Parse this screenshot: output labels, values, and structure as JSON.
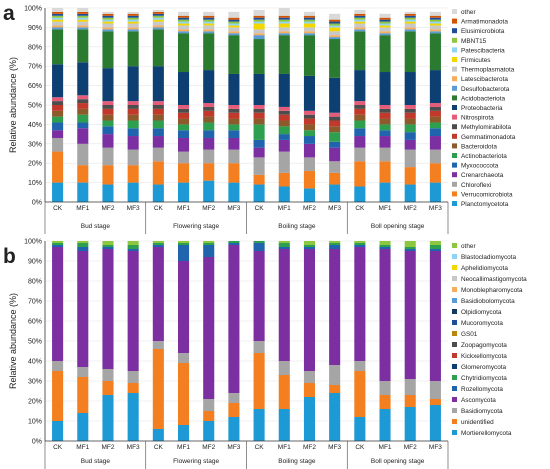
{
  "figure": {
    "panel_labels": [
      "a",
      "b"
    ],
    "stage_labels": [
      "Bud stage",
      "Flowering stage",
      "Boiling stage",
      "Boll opening stage"
    ],
    "treatment_labels": [
      "CK",
      "MF1",
      "MF2",
      "MF3"
    ]
  },
  "chart_data": [
    {
      "type": "bar",
      "stacked": true,
      "panel": "a",
      "ylabel": "Relative abundance (%)",
      "ylim": [
        0,
        100
      ],
      "yticks": [
        "0%",
        "10%",
        "20%",
        "30%",
        "40%",
        "50%",
        "60%",
        "70%",
        "80%",
        "90%",
        "100%"
      ],
      "grid": true,
      "legend_position": "right",
      "categories": [
        "CK",
        "MF1",
        "MF2",
        "MF3",
        "CK",
        "MF1",
        "MF2",
        "MF3",
        "CK",
        "MF1",
        "MF2",
        "MF3",
        "CK",
        "MF1",
        "MF2",
        "MF3"
      ],
      "groups": [
        "Bud stage",
        "Flowering stage",
        "Boiling stage",
        "Boll opening stage"
      ],
      "series": [
        {
          "name": "Planctomycetota",
          "color": "#1d9ad6",
          "values": [
            10,
            10,
            9,
            10,
            9,
            10,
            11,
            10,
            9,
            8,
            7,
            9,
            8,
            10,
            9,
            10
          ]
        },
        {
          "name": "Verrucomicrobiota",
          "color": "#f37f20",
          "values": [
            16,
            9,
            10,
            9,
            12,
            10,
            9,
            10,
            5,
            7,
            9,
            6,
            13,
            11,
            9,
            10
          ]
        },
        {
          "name": "Chloroflexi",
          "color": "#a5a5a5",
          "values": [
            7,
            11,
            9,
            8,
            7,
            6,
            7,
            7,
            9,
            11,
            7,
            6,
            7,
            7,
            9,
            7
          ]
        },
        {
          "name": "Crenarchaeota",
          "color": "#7b2fa0",
          "values": [
            4,
            8,
            7,
            7,
            6,
            7,
            6,
            6,
            5,
            6,
            7,
            7,
            6,
            6,
            5,
            7
          ]
        },
        {
          "name": "Myxococcota",
          "color": "#1f64ad",
          "values": [
            4,
            3,
            4,
            4,
            4,
            4,
            4,
            4,
            4,
            3,
            4,
            3,
            4,
            3,
            4,
            4
          ]
        },
        {
          "name": "Actinobacteriota",
          "color": "#2e9e4f",
          "values": [
            3,
            4,
            3,
            4,
            4,
            3,
            4,
            3,
            8,
            4,
            3,
            5,
            4,
            3,
            4,
            3
          ]
        },
        {
          "name": "Bacteroidota",
          "color": "#8c5a2b",
          "values": [
            3,
            3,
            3,
            3,
            3,
            3,
            3,
            3,
            3,
            3,
            3,
            3,
            3,
            3,
            3,
            3
          ]
        },
        {
          "name": "Gemmatimonadota",
          "color": "#c0392b",
          "values": [
            3,
            3,
            3,
            3,
            3,
            3,
            3,
            3,
            3,
            3,
            3,
            3,
            3,
            3,
            3,
            3
          ]
        },
        {
          "name": "Methylomirabilota",
          "color": "#4d4d4d",
          "values": [
            2,
            2,
            2,
            2,
            2,
            2,
            2,
            2,
            2,
            2,
            2,
            2,
            2,
            2,
            2,
            2
          ]
        },
        {
          "name": "Nitrospirota",
          "color": "#e45c7a",
          "values": [
            2,
            2,
            2,
            2,
            2,
            2,
            2,
            2,
            2,
            2,
            2,
            2,
            2,
            2,
            2,
            2
          ]
        },
        {
          "name": "Proteobacteria",
          "color": "#0d3f73",
          "values": [
            17,
            17,
            17,
            18,
            18,
            17,
            17,
            16,
            16,
            17,
            18,
            18,
            16,
            17,
            17,
            17
          ]
        },
        {
          "name": "Acidobacteriota",
          "color": "#2a7a2f",
          "values": [
            18,
            17,
            19,
            18,
            19,
            20,
            19,
            20,
            18,
            20,
            21,
            20,
            20,
            19,
            21,
            19
          ]
        },
        {
          "name": "Desulfobacterota",
          "color": "#5b9bd5",
          "values": [
            1,
            1,
            1,
            1,
            1,
            1,
            1,
            1,
            2,
            1,
            1,
            1,
            1,
            1,
            1,
            1
          ]
        },
        {
          "name": "Latescibacterota",
          "color": "#f6ad5c",
          "values": [
            1,
            1,
            1,
            1,
            1,
            1,
            1,
            1,
            1,
            1,
            1,
            1,
            1,
            1,
            1,
            1
          ]
        },
        {
          "name": "Thermoplasmatota",
          "color": "#c8c8c8",
          "values": [
            2,
            2,
            2,
            2,
            2,
            2,
            2,
            2,
            2,
            2,
            2,
            2,
            2,
            2,
            2,
            2
          ]
        },
        {
          "name": "Firmicutes",
          "color": "#f5d700",
          "values": [
            1,
            1,
            1,
            1,
            1,
            1,
            1,
            1,
            3,
            2,
            2,
            2,
            1,
            1,
            1,
            1
          ]
        },
        {
          "name": "Patescibacteria",
          "color": "#8fd3f5",
          "values": [
            1,
            1,
            1,
            1,
            1,
            1,
            1,
            1,
            1,
            1,
            1,
            1,
            1,
            1,
            1,
            1
          ]
        },
        {
          "name": "MBNT15",
          "color": "#8dc63f",
          "values": [
            1,
            1,
            1,
            1,
            1,
            1,
            1,
            1,
            1,
            1,
            1,
            1,
            1,
            1,
            1,
            1
          ]
        },
        {
          "name": "Elusimicrobiota",
          "color": "#1f4e99",
          "values": [
            1,
            1,
            1,
            1,
            1,
            1,
            1,
            1,
            1,
            1,
            1,
            1,
            1,
            1,
            1,
            1
          ]
        },
        {
          "name": "Armatimonadota",
          "color": "#d35400",
          "values": [
            1,
            1,
            1,
            1,
            1,
            1,
            1,
            1,
            1,
            1,
            1,
            1,
            1,
            1,
            1,
            1
          ]
        },
        {
          "name": "other",
          "color": "#d9d9d9",
          "values": [
            2,
            2,
            1,
            1,
            1,
            2,
            2,
            3,
            3,
            4,
            2,
            3,
            2,
            2,
            1,
            2
          ]
        }
      ]
    },
    {
      "type": "bar",
      "stacked": true,
      "panel": "b",
      "ylabel": "Relative abundance (%)",
      "ylim": [
        0,
        100
      ],
      "yticks": [
        "0%",
        "10%",
        "20%",
        "30%",
        "40%",
        "50%",
        "60%",
        "70%",
        "80%",
        "90%",
        "100%"
      ],
      "grid": true,
      "legend_position": "right",
      "categories": [
        "CK",
        "MF1",
        "MF2",
        "MF3",
        "CK",
        "MF1",
        "MF2",
        "MF3",
        "CK",
        "MF1",
        "MF2",
        "MF3",
        "CK",
        "MF1",
        "MF2",
        "MF3"
      ],
      "groups": [
        "Bud stage",
        "Flowering stage",
        "Boiling stage",
        "Boll opening stage"
      ],
      "series": [
        {
          "name": "Mortierellomycota",
          "color": "#1d9ad6",
          "values": [
            10,
            14,
            23,
            24,
            6,
            8,
            10,
            12,
            16,
            16,
            22,
            24,
            12,
            16,
            17,
            18
          ]
        },
        {
          "name": "unidentified",
          "color": "#f37f20",
          "values": [
            25,
            18,
            7,
            5,
            40,
            31,
            5,
            7,
            28,
            17,
            7,
            4,
            23,
            7,
            6,
            3
          ]
        },
        {
          "name": "Basidiomycota",
          "color": "#a5a5a5",
          "values": [
            5,
            5,
            6,
            6,
            4,
            5,
            6,
            5,
            6,
            7,
            6,
            10,
            5,
            7,
            8,
            9
          ]
        },
        {
          "name": "Ascomycota",
          "color": "#7b2fa0",
          "values": [
            57,
            58,
            60,
            60,
            47,
            46,
            71,
            74,
            45,
            56,
            61,
            58,
            57,
            66,
            64,
            65
          ]
        },
        {
          "name": "Rozellomycota",
          "color": "#1f64ad",
          "values": [
            1,
            2,
            1,
            1,
            1,
            8,
            6,
            1,
            4,
            1,
            1,
            2,
            1,
            1,
            1,
            1
          ]
        },
        {
          "name": "Chytridiomycota",
          "color": "#2e9e4f",
          "values": [
            1,
            2,
            1,
            2,
            1,
            1,
            1,
            1,
            1,
            2,
            1,
            1,
            1,
            1,
            1,
            2
          ]
        },
        {
          "name": "Glomeromycota",
          "color": "#0d3f73",
          "values": [
            0,
            0,
            0,
            0,
            0,
            0,
            0,
            0,
            0,
            0,
            0,
            0,
            0,
            0,
            0,
            0
          ]
        },
        {
          "name": "Kickxellomycota",
          "color": "#c0392b",
          "values": [
            0,
            0,
            0,
            0,
            0,
            0,
            0,
            0,
            0,
            0,
            0,
            0,
            0,
            0,
            0,
            0
          ]
        },
        {
          "name": "Zoopagomycota",
          "color": "#4d4d4d",
          "values": [
            0,
            0,
            0,
            0,
            0,
            0,
            0,
            0,
            0,
            0,
            0,
            0,
            0,
            0,
            0,
            0
          ]
        },
        {
          "name": "GS01",
          "color": "#b8860b",
          "values": [
            0,
            0,
            0,
            0,
            0,
            0,
            0,
            0,
            0,
            0,
            0,
            0,
            0,
            0,
            0,
            0
          ]
        },
        {
          "name": "Mucoromycota",
          "color": "#1f4e99",
          "values": [
            0,
            0,
            0,
            0,
            0,
            0,
            0,
            0,
            0,
            0,
            0,
            0,
            0,
            0,
            0,
            0
          ]
        },
        {
          "name": "Olpidiomycota",
          "color": "#163a5f",
          "values": [
            0,
            0,
            0,
            0,
            0,
            0,
            0,
            0,
            0,
            0,
            0,
            0,
            0,
            0,
            0,
            0
          ]
        },
        {
          "name": "Basidiobolomycota",
          "color": "#5b9bd5",
          "values": [
            0,
            0,
            0,
            0,
            0,
            0,
            0,
            0,
            0,
            0,
            0,
            0,
            0,
            0,
            0,
            0
          ]
        },
        {
          "name": "Monoblepharomycota",
          "color": "#f6ad5c",
          "values": [
            0,
            0,
            0,
            0,
            0,
            0,
            0,
            0,
            0,
            0,
            0,
            0,
            0,
            0,
            0,
            0
          ]
        },
        {
          "name": "Neocallimastigomycota",
          "color": "#c8c8c8",
          "values": [
            0,
            0,
            0,
            0,
            0,
            0,
            0,
            0,
            0,
            0,
            0,
            0,
            0,
            0,
            0,
            0
          ]
        },
        {
          "name": "Aphelidiomycota",
          "color": "#f5d700",
          "values": [
            0,
            0,
            0,
            0,
            0,
            0,
            0,
            0,
            0,
            0,
            0,
            0,
            0,
            0,
            0,
            0
          ]
        },
        {
          "name": "Blastocladiomycota",
          "color": "#8fd3f5",
          "values": [
            0,
            0,
            0,
            0,
            0,
            0,
            0,
            0,
            0,
            0,
            0,
            0,
            0,
            0,
            0,
            0
          ]
        },
        {
          "name": "other",
          "color": "#8dc63f",
          "values": [
            1,
            1,
            2,
            2,
            1,
            1,
            1,
            0,
            0,
            1,
            2,
            1,
            1,
            2,
            3,
            2
          ]
        }
      ]
    }
  ]
}
